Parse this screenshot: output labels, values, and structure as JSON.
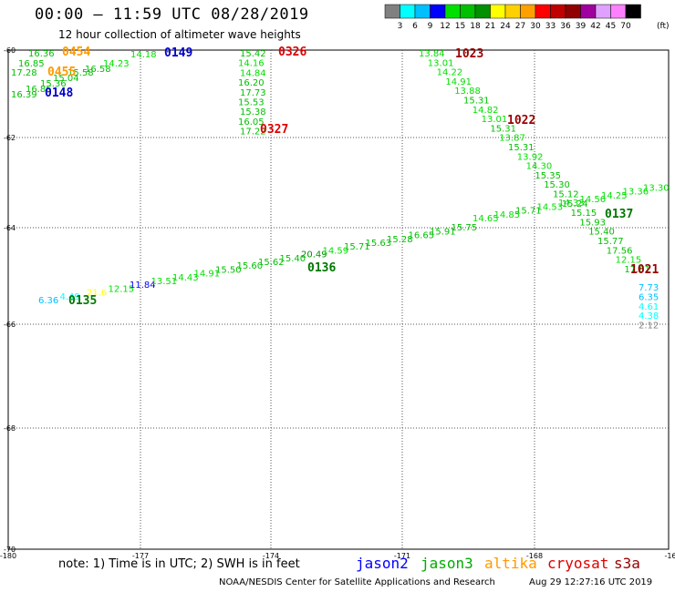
{
  "header": {
    "title": "00:00 – 11:59 UTC 08/28/2019",
    "subtitle": "12 hour collection of altimeter wave heights"
  },
  "colorbar": {
    "colors": [
      "#808080",
      "#00ffff",
      "#00bfff",
      "#0000ff",
      "#00e000",
      "#00c000",
      "#009000",
      "#ffff00",
      "#ffd000",
      "#ffa000",
      "#ff0000",
      "#c00000",
      "#900000",
      "#a000a0",
      "#e0a0ff",
      "#ff80ff",
      "#000000"
    ],
    "ticks": [
      "3",
      "6",
      "9",
      "12",
      "15",
      "18",
      "21",
      "24",
      "27",
      "30",
      "33",
      "36",
      "39",
      "42",
      "45",
      "70"
    ],
    "unit": "(ft)"
  },
  "map": {
    "lat_labels": [
      "-60",
      "-62",
      "-64",
      "-66",
      "-68",
      "-70"
    ],
    "lon_labels": [
      "-180",
      "-177",
      "-174",
      "-171",
      "-168",
      "-16"
    ],
    "passes": [
      {
        "time": "0454",
        "color": "#ff9900"
      },
      {
        "time": "0455",
        "color": "#ff9900"
      },
      {
        "time": "0148",
        "color": "#0000cc"
      },
      {
        "time": "0149",
        "color": "#0000cc"
      },
      {
        "time": "0326",
        "color": "#dd0000"
      },
      {
        "time": "0327",
        "color": "#dd0000"
      },
      {
        "time": "1023",
        "color": "#990000"
      },
      {
        "time": "1022",
        "color": "#990000"
      },
      {
        "time": "1021",
        "color": "#990000"
      },
      {
        "time": "0137",
        "color": "#007700"
      },
      {
        "time": "0136",
        "color": "#007700"
      },
      {
        "time": "0135",
        "color": "#007700"
      }
    ],
    "values": {
      "top_left": [
        "16.36",
        "16.85",
        "17.28",
        "16.39",
        "16.86",
        "15.36",
        "15.04",
        "15.58",
        "16.58",
        "14.23",
        "14.18"
      ],
      "cryosat_0326": [
        "15.42",
        "14.16",
        "14.84",
        "16.20",
        "17.73",
        "15.53",
        "15.38",
        "16.05",
        "17.22"
      ],
      "s3a_1021": [
        "13.84",
        "13.01",
        "14.22",
        "14.91",
        "13.88",
        "15.31",
        "14.82",
        "13.01",
        "15.31",
        "13.87",
        "15.31",
        "13.92",
        "14.30",
        "15.35",
        "15.30",
        "15.12",
        "15.24",
        "15.15",
        "15.93",
        "15.40",
        "15.77",
        "17.56",
        "12.15",
        "17.61",
        "7.73",
        "6.35",
        "4.61",
        "4.38",
        "2.12"
      ],
      "jason3_0135": [
        "6.36",
        "4.49",
        "21.6",
        "12.15",
        "11.84",
        "13.51",
        "14.43",
        "14.91",
        "15.50",
        "15.60",
        "15.62",
        "15.40",
        "20.49",
        "14.59",
        "15.71",
        "15.63",
        "15.28",
        "16.65",
        "15.91",
        "15.75",
        "14.65",
        "14.85",
        "15.71",
        "14.53",
        "14.33",
        "14.56",
        "14.25",
        "13.36",
        "13.30"
      ]
    }
  },
  "footer": {
    "note": "note: 1) Time is in UTC; 2) SWH is in feet",
    "satellites": [
      {
        "name": "jason2",
        "color": "#0000ff"
      },
      {
        "name": "jason3",
        "color": "#00aa00"
      },
      {
        "name": "altika",
        "color": "#ff9900"
      },
      {
        "name": "cryosat",
        "color": "#dd0000"
      },
      {
        "name": "s3a",
        "color": "#990000"
      }
    ],
    "credit": "NOAA/NESDIS Center for Satellite Applications and Research",
    "timestamp": "Aug 29 12:27:16 UTC 2019"
  }
}
